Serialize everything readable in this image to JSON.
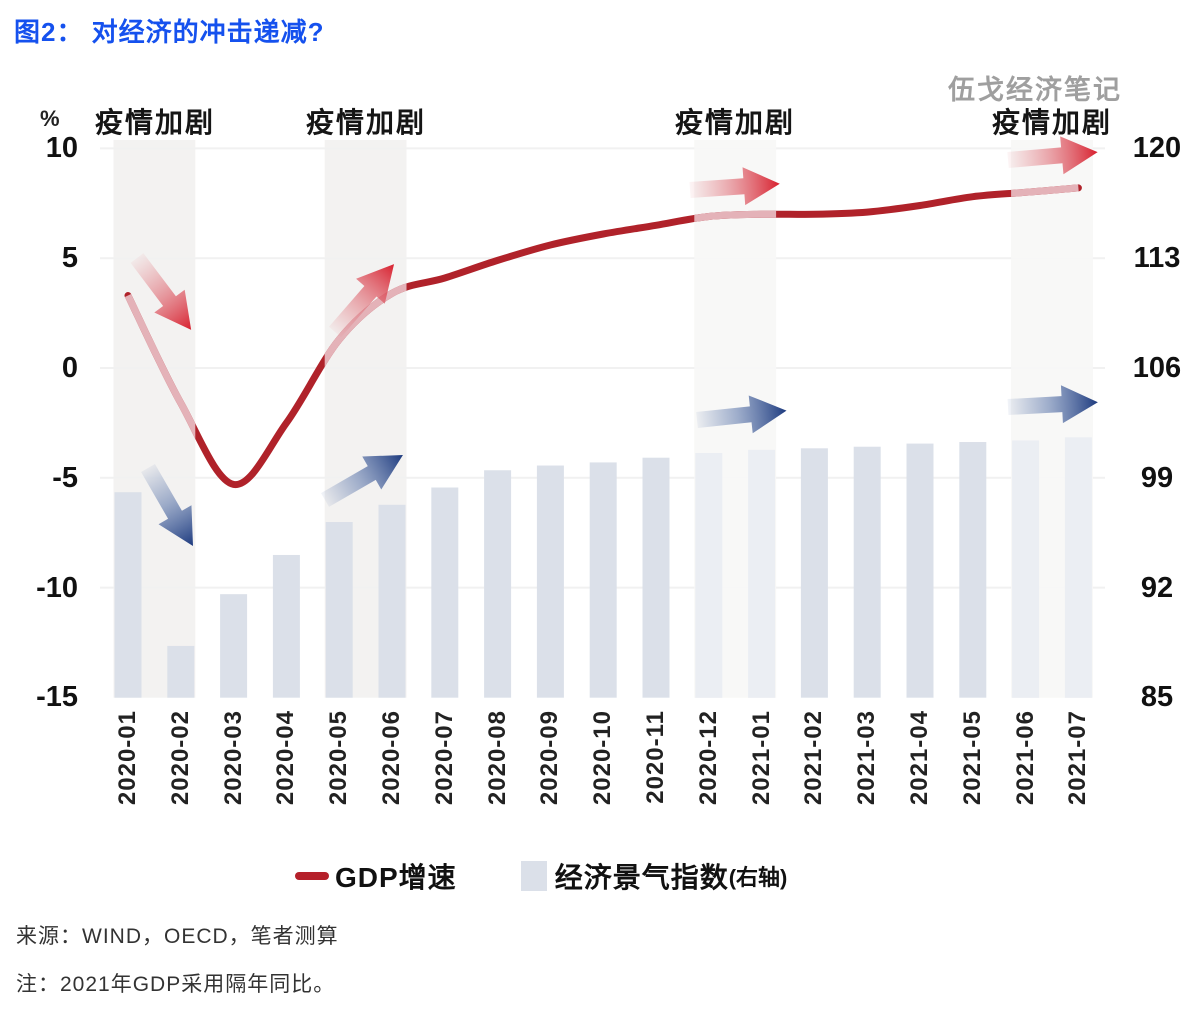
{
  "title": "图2： 对经济的冲击递减?",
  "watermark": "伍戈经济笔记",
  "chart_data": {
    "type": "combo",
    "categories": [
      "2020-01",
      "2020-02",
      "2020-03",
      "2020-04",
      "2020-05",
      "2020-06",
      "2020-07",
      "2020-08",
      "2020-09",
      "2020-10",
      "2020-11",
      "2020-12",
      "2021-01",
      "2021-02",
      "2021-03",
      "2021-04",
      "2021-05",
      "2021-06",
      "2021-07"
    ],
    "series": [
      {
        "name": "GDP增速",
        "type": "line",
        "axis": "left",
        "color": "#b0222a",
        "faded_color": "#e4b2b8",
        "values": [
          3.3,
          -1.6,
          -5.3,
          -2.5,
          1.3,
          3.4,
          4.1,
          4.9,
          5.6,
          6.1,
          6.5,
          6.9,
          7.0,
          7.0,
          7.1,
          7.4,
          7.8,
          8.0,
          8.2
        ]
      },
      {
        "name": "经济景气指数",
        "type": "bar",
        "axis": "right",
        "color": "#dbe0e9",
        "values": [
          98.1,
          88.3,
          91.6,
          94.1,
          96.2,
          97.3,
          98.4,
          99.5,
          99.8,
          100.0,
          100.3,
          100.6,
          100.8,
          100.9,
          101.0,
          101.2,
          101.3,
          101.4,
          101.6
        ]
      }
    ],
    "left_axis": {
      "unit": "%",
      "ticks": [
        10,
        5,
        0,
        -5,
        -10,
        -15
      ],
      "range": [
        -15,
        10
      ]
    },
    "right_axis": {
      "ticks": [
        120,
        113,
        106,
        99,
        92,
        85
      ],
      "range": [
        85,
        120
      ]
    },
    "annotations": {
      "label": "疫情加剧",
      "band_color": "#f3f2f1",
      "bands": [
        {
          "columns": [
            0,
            1
          ],
          "fade_bars": false
        },
        {
          "columns": [
            4,
            5
          ],
          "fade_bars": false
        },
        {
          "columns": [
            11,
            12
          ],
          "fade_bars": true
        },
        {
          "columns": [
            17,
            18
          ],
          "fade_bars": true
        }
      ],
      "arrows": [
        {
          "color": "red",
          "direction": "down"
        },
        {
          "color": "blue",
          "direction": "down"
        },
        {
          "color": "red",
          "direction": "up"
        },
        {
          "color": "blue",
          "direction": "up"
        },
        {
          "color": "red",
          "direction": "right"
        },
        {
          "color": "blue",
          "direction": "right"
        },
        {
          "color": "red",
          "direction": "right"
        },
        {
          "color": "blue",
          "direction": "right"
        }
      ],
      "arrow_colors": {
        "red": "#d8202e",
        "blue": "#1d3a7e"
      }
    },
    "legend": [
      {
        "label": "GDP增速",
        "swatch": "line"
      },
      {
        "label": "经济景气指数",
        "suffix": "(右轴)",
        "swatch": "bar"
      }
    ]
  },
  "footer": {
    "source": "来源：WIND，OECD，笔者测算",
    "note": "注：2021年GDP采用隔年同比。"
  }
}
